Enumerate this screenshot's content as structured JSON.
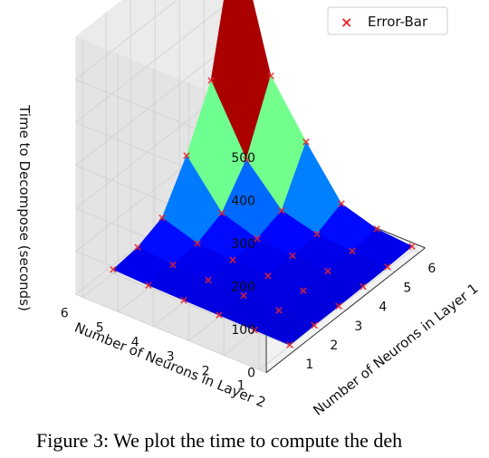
{
  "chart_data": {
    "type": "surface3d",
    "x": [
      1,
      2,
      3,
      4,
      5,
      6
    ],
    "y": [
      1,
      2,
      3,
      4,
      5,
      6
    ],
    "xlabel": "Number of Neurons in Layer 1",
    "ylabel": "Number of Neurons in Layer 2",
    "zlabel": "Time to Decompose (seconds)",
    "x_ticks": [
      "1",
      "2",
      "3",
      "4",
      "5",
      "6"
    ],
    "y_ticks": [
      "1",
      "2",
      "3",
      "4",
      "5",
      "6"
    ],
    "z_ticks": [
      "0",
      "100",
      "200",
      "300",
      "400",
      "500"
    ],
    "zlim": [
      0,
      600
    ],
    "z": [
      [
        2,
        3,
        3,
        4,
        5,
        8
      ],
      [
        3,
        4,
        5,
        6,
        8,
        15
      ],
      [
        4,
        5,
        6,
        8,
        14,
        40
      ],
      [
        5,
        7,
        9,
        14,
        35,
        150
      ],
      [
        6,
        9,
        14,
        40,
        120,
        270
      ],
      [
        9,
        16,
        40,
        140,
        270,
        580
      ]
    ],
    "marker_series": {
      "name": "Error-Bar",
      "marker": "x",
      "color": "#e8262a"
    },
    "legend_position": "top-right",
    "grid": true,
    "colormap": "jet"
  },
  "caption_text": "Figure 3:  We plot the time to compute the deh"
}
